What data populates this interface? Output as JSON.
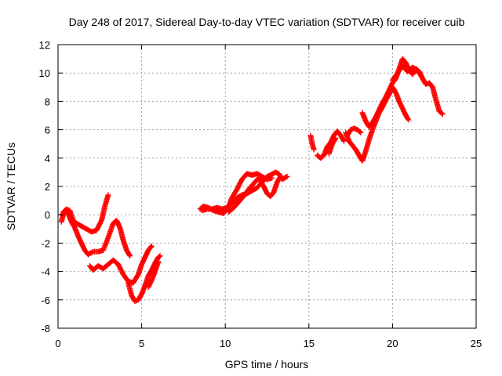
{
  "chart_data": {
    "type": "scatter",
    "title": "Day 248 of 2017, Sidereal Day-to-day VTEC variation (SDTVAR) for receiver cuib",
    "xlabel": "GPS time / hours",
    "ylabel": "SDTVAR / TECUs",
    "xlim": [
      0,
      25
    ],
    "ylim": [
      -8,
      12
    ],
    "xticks": [
      0,
      5,
      10,
      15,
      20,
      25
    ],
    "yticks": [
      -8,
      -6,
      -4,
      -2,
      0,
      2,
      4,
      6,
      8,
      10,
      12
    ],
    "grid": true,
    "marker": "+",
    "color": "#ff0000",
    "series": [
      {
        "segments": [
          [
            [
              0.2,
              -0.5
            ],
            [
              0.35,
              0.2
            ],
            [
              0.5,
              0.4
            ],
            [
              0.7,
              0.3
            ],
            [
              0.9,
              -0.4
            ],
            [
              1.1,
              -0.6
            ],
            [
              1.4,
              -0.8
            ],
            [
              1.7,
              -1.0
            ],
            [
              2.0,
              -1.2
            ],
            [
              2.3,
              -1.1
            ],
            [
              2.6,
              -0.4
            ],
            [
              2.8,
              0.6
            ],
            [
              3.0,
              1.4
            ]
          ],
          [
            [
              0.25,
              0.0
            ],
            [
              0.4,
              0.3
            ],
            [
              0.6,
              0.1
            ],
            [
              0.8,
              -0.5
            ],
            [
              1.0,
              -0.9
            ],
            [
              1.2,
              -1.5
            ],
            [
              1.4,
              -2.0
            ],
            [
              1.6,
              -2.5
            ],
            [
              1.8,
              -2.8
            ],
            [
              2.1,
              -2.6
            ],
            [
              2.4,
              -2.6
            ],
            [
              2.7,
              -2.5
            ],
            [
              3.0,
              -1.6
            ],
            [
              3.3,
              -0.6
            ],
            [
              3.5,
              -0.4
            ],
            [
              3.7,
              -0.9
            ],
            [
              3.9,
              -1.8
            ],
            [
              4.1,
              -2.5
            ],
            [
              4.3,
              -2.9
            ]
          ],
          [
            [
              1.9,
              -3.6
            ],
            [
              2.1,
              -3.9
            ],
            [
              2.4,
              -3.6
            ],
            [
              2.7,
              -3.8
            ],
            [
              3.0,
              -3.5
            ],
            [
              3.3,
              -3.2
            ],
            [
              3.6,
              -3.5
            ],
            [
              3.9,
              -4.2
            ],
            [
              4.2,
              -4.7
            ],
            [
              4.5,
              -4.8
            ],
            [
              4.8,
              -4.2
            ],
            [
              5.0,
              -3.5
            ],
            [
              5.2,
              -3.0
            ],
            [
              5.4,
              -2.5
            ],
            [
              5.6,
              -2.2
            ]
          ],
          [
            [
              4.2,
              -4.8
            ],
            [
              4.4,
              -5.7
            ],
            [
              4.6,
              -6.1
            ],
            [
              4.8,
              -6.0
            ],
            [
              5.0,
              -5.6
            ],
            [
              5.2,
              -5.0
            ],
            [
              5.4,
              -4.3
            ],
            [
              5.6,
              -3.9
            ],
            [
              5.8,
              -3.4
            ],
            [
              6.0,
              -3.0
            ],
            [
              6.1,
              -2.9
            ]
          ],
          [
            [
              5.4,
              -5.1
            ],
            [
              5.6,
              -4.6
            ],
            [
              5.8,
              -4.0
            ],
            [
              6.0,
              -3.3
            ]
          ],
          [
            [
              8.5,
              0.4
            ],
            [
              8.7,
              0.6
            ],
            [
              9.0,
              0.5
            ],
            [
              9.3,
              0.3
            ],
            [
              9.6,
              0.2
            ],
            [
              9.9,
              0.1
            ],
            [
              10.2,
              0.6
            ],
            [
              10.4,
              1.2
            ],
            [
              10.7,
              1.8
            ],
            [
              11.0,
              2.5
            ],
            [
              11.3,
              2.9
            ],
            [
              11.6,
              2.8
            ],
            [
              11.9,
              2.9
            ],
            [
              12.2,
              2.7
            ],
            [
              12.5,
              2.5
            ],
            [
              12.8,
              2.6
            ]
          ],
          [
            [
              8.6,
              0.3
            ],
            [
              8.9,
              0.4
            ],
            [
              9.2,
              0.4
            ],
            [
              9.5,
              0.5
            ],
            [
              9.8,
              0.4
            ],
            [
              10.1,
              0.5
            ],
            [
              10.4,
              0.8
            ],
            [
              10.7,
              1.2
            ],
            [
              11.0,
              1.4
            ],
            [
              11.3,
              1.5
            ],
            [
              11.6,
              1.7
            ],
            [
              11.9,
              1.9
            ],
            [
              12.2,
              2.3
            ],
            [
              12.5,
              2.7
            ],
            [
              12.7,
              2.8
            ],
            [
              13.0,
              3.0
            ],
            [
              13.2,
              2.9
            ],
            [
              13.4,
              2.5
            ],
            [
              13.7,
              2.7
            ]
          ],
          [
            [
              10.2,
              0.2
            ],
            [
              10.5,
              0.5
            ],
            [
              10.8,
              0.9
            ],
            [
              11.1,
              1.3
            ],
            [
              11.4,
              1.8
            ],
            [
              11.7,
              2.2
            ],
            [
              12.0,
              2.6
            ],
            [
              12.3,
              2.0
            ],
            [
              12.5,
              1.5
            ],
            [
              12.7,
              1.3
            ],
            [
              12.9,
              1.6
            ],
            [
              13.1,
              2.3
            ],
            [
              13.3,
              2.7
            ]
          ],
          [
            [
              15.1,
              5.6
            ],
            [
              15.2,
              5.0
            ],
            [
              15.3,
              4.6
            ]
          ],
          [
            [
              15.5,
              4.2
            ],
            [
              15.7,
              4.0
            ],
            [
              15.9,
              4.2
            ],
            [
              16.1,
              4.8
            ],
            [
              16.3,
              5.1
            ],
            [
              16.5,
              5.6
            ],
            [
              16.7,
              5.9
            ],
            [
              16.9,
              5.6
            ],
            [
              17.1,
              5.2
            ]
          ],
          [
            [
              16.2,
              4.3
            ],
            [
              16.4,
              5.0
            ],
            [
              16.6,
              5.4
            ]
          ],
          [
            [
              17.3,
              5.6
            ],
            [
              17.5,
              6.0
            ],
            [
              17.7,
              6.1
            ],
            [
              17.9,
              6.0
            ],
            [
              18.1,
              5.8
            ]
          ],
          [
            [
              17.2,
              5.8
            ],
            [
              17.4,
              5.2
            ],
            [
              17.6,
              4.9
            ],
            [
              17.8,
              4.6
            ],
            [
              18.0,
              4.2
            ],
            [
              18.2,
              3.8
            ],
            [
              18.4,
              4.5
            ],
            [
              18.6,
              5.3
            ],
            [
              18.8,
              6.0
            ],
            [
              19.0,
              6.6
            ],
            [
              19.2,
              7.2
            ],
            [
              19.4,
              7.6
            ],
            [
              19.6,
              8.1
            ],
            [
              19.8,
              8.5
            ],
            [
              20.0,
              9.0
            ],
            [
              20.2,
              8.6
            ],
            [
              20.4,
              8.0
            ],
            [
              20.6,
              7.5
            ],
            [
              20.8,
              7.0
            ],
            [
              20.95,
              6.7
            ]
          ],
          [
            [
              18.2,
              7.2
            ],
            [
              18.4,
              6.6
            ],
            [
              18.6,
              6.2
            ],
            [
              18.8,
              6.5
            ],
            [
              19.0,
              6.9
            ],
            [
              19.2,
              7.4
            ],
            [
              19.4,
              7.9
            ],
            [
              19.6,
              8.3
            ],
            [
              19.8,
              8.8
            ],
            [
              20.0,
              9.3
            ],
            [
              20.2,
              9.6
            ],
            [
              20.4,
              10.3
            ],
            [
              20.6,
              11.0
            ],
            [
              20.8,
              10.7
            ],
            [
              21.0,
              10.2
            ],
            [
              21.2,
              9.9
            ],
            [
              21.4,
              10.3
            ],
            [
              21.6,
              10.1
            ],
            [
              21.8,
              9.6
            ],
            [
              22.0,
              9.2
            ],
            [
              22.2,
              9.3
            ],
            [
              22.4,
              9.0
            ],
            [
              22.6,
              8.1
            ],
            [
              22.8,
              7.3
            ],
            [
              23.0,
              7.1
            ]
          ],
          [
            [
              20.0,
              9.5
            ],
            [
              20.3,
              10.0
            ],
            [
              20.6,
              10.5
            ],
            [
              20.9,
              10.1
            ],
            [
              21.2,
              10.4
            ],
            [
              21.5,
              10.2
            ],
            [
              21.7,
              9.8
            ]
          ]
        ]
      }
    ]
  }
}
